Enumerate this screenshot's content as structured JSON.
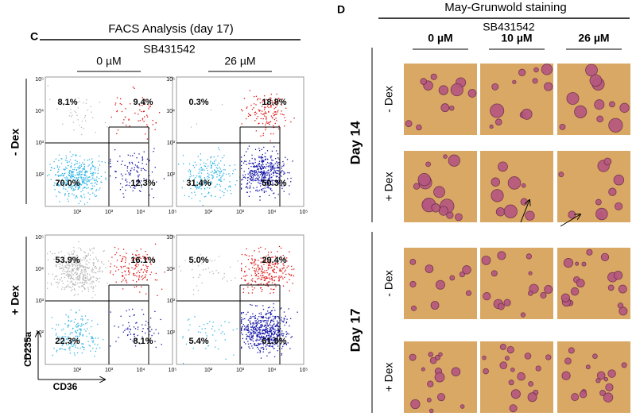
{
  "panel_c": {
    "letter": "C",
    "title": "FACS Analysis (day 17)",
    "compound": "SB431542",
    "doses": [
      "0 µM",
      "26 µM"
    ],
    "axis_ticks": [
      "10²",
      "10³",
      "10⁴",
      "10⁵"
    ],
    "rows": [
      {
        "label": "- Dex",
        "plots": [
          {
            "quadrants": [
              "8.1%",
              "9.4%",
              "70.0%",
              "12.3%"
            ]
          },
          {
            "quadrants": [
              "0.3%",
              "18.8%",
              "31.4%",
              "50.3%"
            ]
          }
        ]
      },
      {
        "label": "+ Dex",
        "plots": [
          {
            "quadrants": [
              "53.9%",
              "16.1%",
              "22.3%",
              "8.1%"
            ]
          },
          {
            "quadrants": [
              "5.0%",
              "29.4%",
              "5.4%",
              "61.9%"
            ]
          }
        ]
      }
    ],
    "y_axis_label": "CD235a",
    "x_axis_label": "CD36"
  },
  "panel_d": {
    "letter": "D",
    "title": "May-Grunwold staining",
    "compound": "SB431542",
    "doses": [
      "0 µM",
      "10 µM",
      "26 µM"
    ],
    "groups": [
      {
        "label": "Day 14",
        "rows": [
          "- Dex",
          "+ Dex"
        ]
      },
      {
        "label": "Day 17",
        "rows": [
          "- Dex",
          "+ Dex"
        ]
      }
    ]
  }
}
